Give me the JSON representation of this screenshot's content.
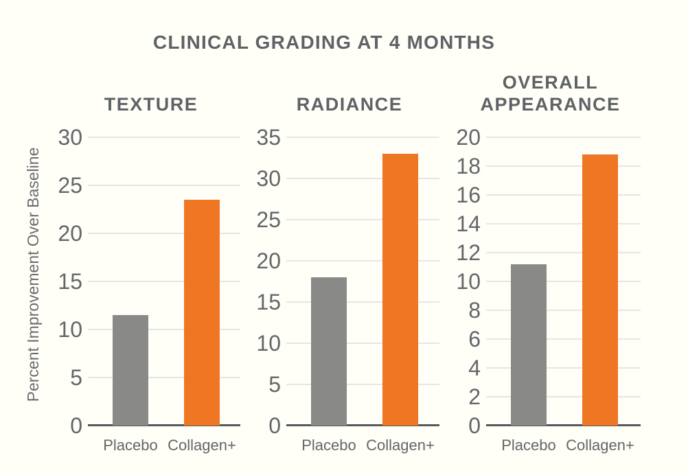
{
  "title": "CLINICAL GRADING AT 4 MONTHS",
  "ylabel": "Percent Improvement Over Baseline",
  "colors": {
    "placebo_bar": "#898987",
    "collagen_bar": "#EF7623",
    "heading_text": "#5F6266",
    "tick_text": "#63666A",
    "grid_line": "#E5E6E7",
    "axis_line": "#55575B",
    "background": "#FFFEF7"
  },
  "chart_data": [
    {
      "type": "bar",
      "title": "TEXTURE",
      "categories": [
        "Placebo",
        "Collagen+"
      ],
      "values": [
        11.5,
        23.5
      ],
      "ylim": [
        0,
        30
      ],
      "ytick_step": 5,
      "ylabel": "Percent Improvement Over Baseline",
      "grid": true,
      "legend": "none",
      "bar_colors": [
        "#898987",
        "#EF7623"
      ]
    },
    {
      "type": "bar",
      "title": "RADIANCE",
      "categories": [
        "Placebo",
        "Collagen+"
      ],
      "values": [
        18,
        33
      ],
      "ylim": [
        0,
        35
      ],
      "ytick_step": 5,
      "ylabel": "Percent Improvement Over Baseline",
      "grid": true,
      "legend": "none",
      "bar_colors": [
        "#898987",
        "#EF7623"
      ]
    },
    {
      "type": "bar",
      "title": "OVERALL APPEARANCE",
      "categories": [
        "Placebo",
        "Collagen+"
      ],
      "values": [
        11.2,
        18.8
      ],
      "ylim": [
        0,
        20
      ],
      "ytick_step": 2,
      "ylabel": "Percent Improvement Over Baseline",
      "grid": true,
      "legend": "none",
      "bar_colors": [
        "#898987",
        "#EF7623"
      ]
    }
  ]
}
